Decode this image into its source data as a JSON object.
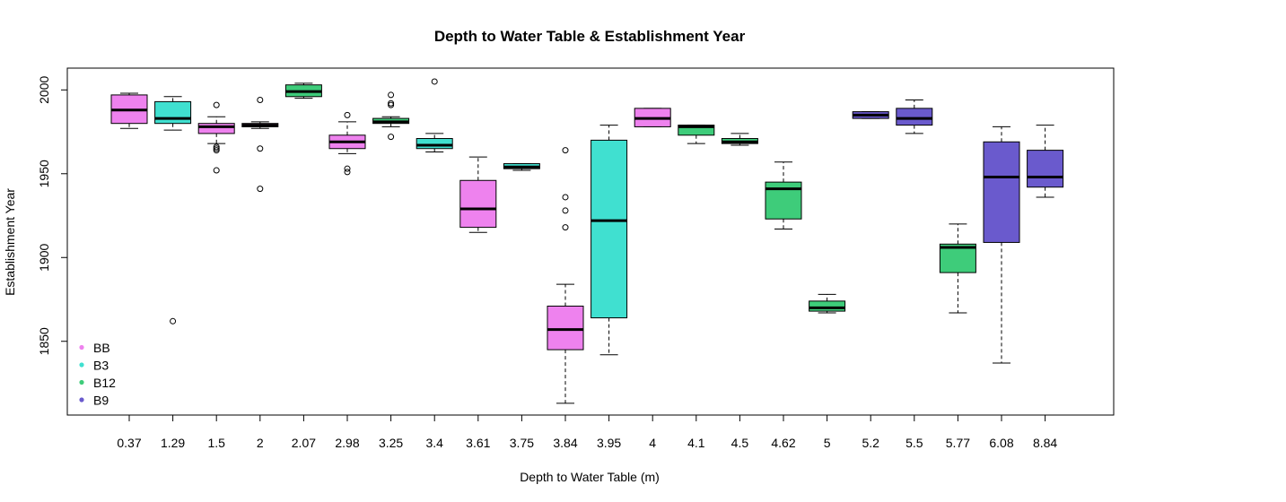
{
  "chart_data": {
    "type": "box",
    "title": "Depth to Water Table & Establishment Year",
    "xlabel": "Depth to Water Table (m)",
    "ylabel": "Establishment Year",
    "ylim": [
      1806,
      2013
    ],
    "yticks": [
      1850,
      1900,
      1950,
      2000
    ],
    "grid": false,
    "legend_position": "bottom-left",
    "colors": {
      "BB": "#EE82EE",
      "B3": "#40E0D0",
      "B12": "#3ECC7A",
      "B9": "#6A5ACD"
    },
    "legend": [
      {
        "name": "BB",
        "color": "#EE82EE"
      },
      {
        "name": "B3",
        "color": "#40E0D0"
      },
      {
        "name": "B12",
        "color": "#3ECC7A"
      },
      {
        "name": "B9",
        "color": "#6A5ACD"
      }
    ],
    "categories": [
      "0.37",
      "1.29",
      "1.5",
      "2",
      "2.07",
      "2.98",
      "3.25",
      "3.4",
      "3.61",
      "3.75",
      "3.84",
      "3.95",
      "4",
      "4.1",
      "4.5",
      "4.62",
      "5",
      "5.2",
      "5.5",
      "5.77",
      "6.08",
      "8.84"
    ],
    "boxes": [
      {
        "group": "BB",
        "whisker_low": 1977,
        "q1": 1980,
        "median": 1988,
        "q3": 1997,
        "whisker_high": 1998,
        "outliers": []
      },
      {
        "group": "B3",
        "whisker_low": 1976,
        "q1": 1980,
        "median": 1983,
        "q3": 1993,
        "whisker_high": 1996,
        "outliers": [
          1862
        ]
      },
      {
        "group": "BB",
        "whisker_low": 1968,
        "q1": 1974,
        "median": 1978,
        "q3": 1980,
        "whisker_high": 1984,
        "outliers": [
          1991,
          1966,
          1965,
          1964,
          1952
        ]
      },
      {
        "group": "BB",
        "whisker_low": 1977,
        "q1": 1978,
        "median": 1979,
        "q3": 1980,
        "whisker_high": 1981,
        "outliers": [
          1994,
          1965,
          1941
        ]
      },
      {
        "group": "B12",
        "whisker_low": 1995,
        "q1": 1996,
        "median": 1999,
        "q3": 2003,
        "whisker_high": 2004,
        "outliers": []
      },
      {
        "group": "BB",
        "whisker_low": 1962,
        "q1": 1965,
        "median": 1969,
        "q3": 1973,
        "whisker_high": 1981,
        "outliers": [
          1985,
          1953,
          1951
        ]
      },
      {
        "group": "B12",
        "whisker_low": 1978,
        "q1": 1980,
        "median": 1981,
        "q3": 1983,
        "whisker_high": 1984,
        "outliers": [
          1997,
          1992,
          1991,
          1972
        ]
      },
      {
        "group": "B3",
        "whisker_low": 1963,
        "q1": 1965,
        "median": 1967,
        "q3": 1971,
        "whisker_high": 1974,
        "outliers": [
          2005
        ]
      },
      {
        "group": "BB",
        "whisker_low": 1915,
        "q1": 1918,
        "median": 1929,
        "q3": 1946,
        "whisker_high": 1960,
        "outliers": []
      },
      {
        "group": "B3",
        "whisker_low": 1952,
        "q1": 1953,
        "median": 1954,
        "q3": 1956,
        "whisker_high": 1956,
        "outliers": []
      },
      {
        "group": "BB",
        "whisker_low": 1813,
        "q1": 1845,
        "median": 1857,
        "q3": 1871,
        "whisker_high": 1884,
        "outliers": [
          1964,
          1936,
          1928,
          1918
        ]
      },
      {
        "group": "B3",
        "whisker_low": 1842,
        "q1": 1864,
        "median": 1922,
        "q3": 1970,
        "whisker_high": 1979,
        "outliers": []
      },
      {
        "group": "BB",
        "whisker_low": 1978,
        "q1": 1978,
        "median": 1983,
        "q3": 1989,
        "whisker_high": 1989,
        "outliers": []
      },
      {
        "group": "B12",
        "whisker_low": 1968,
        "q1": 1973,
        "median": 1978,
        "q3": 1979,
        "whisker_high": 1979,
        "outliers": []
      },
      {
        "group": "B12",
        "whisker_low": 1967,
        "q1": 1968,
        "median": 1969,
        "q3": 1971,
        "whisker_high": 1974,
        "outliers": []
      },
      {
        "group": "B12",
        "whisker_low": 1917,
        "q1": 1923,
        "median": 1941,
        "q3": 1945,
        "whisker_high": 1957,
        "outliers": []
      },
      {
        "group": "B12",
        "whisker_low": 1867,
        "q1": 1868,
        "median": 1870,
        "q3": 1874,
        "whisker_high": 1878,
        "outliers": []
      },
      {
        "group": "B9",
        "whisker_low": 1983,
        "q1": 1983,
        "median": 1985,
        "q3": 1987,
        "whisker_high": 1987,
        "outliers": []
      },
      {
        "group": "B9",
        "whisker_low": 1974,
        "q1": 1979,
        "median": 1983,
        "q3": 1989,
        "whisker_high": 1994,
        "outliers": []
      },
      {
        "group": "B12",
        "whisker_low": 1867,
        "q1": 1891,
        "median": 1906,
        "q3": 1908,
        "whisker_high": 1920,
        "outliers": []
      },
      {
        "group": "B9",
        "whisker_low": 1837,
        "q1": 1909,
        "median": 1948,
        "q3": 1969,
        "whisker_high": 1978,
        "outliers": []
      },
      {
        "group": "B9",
        "whisker_low": 1936,
        "q1": 1942,
        "median": 1948,
        "q3": 1964,
        "whisker_high": 1979,
        "outliers": []
      }
    ]
  }
}
